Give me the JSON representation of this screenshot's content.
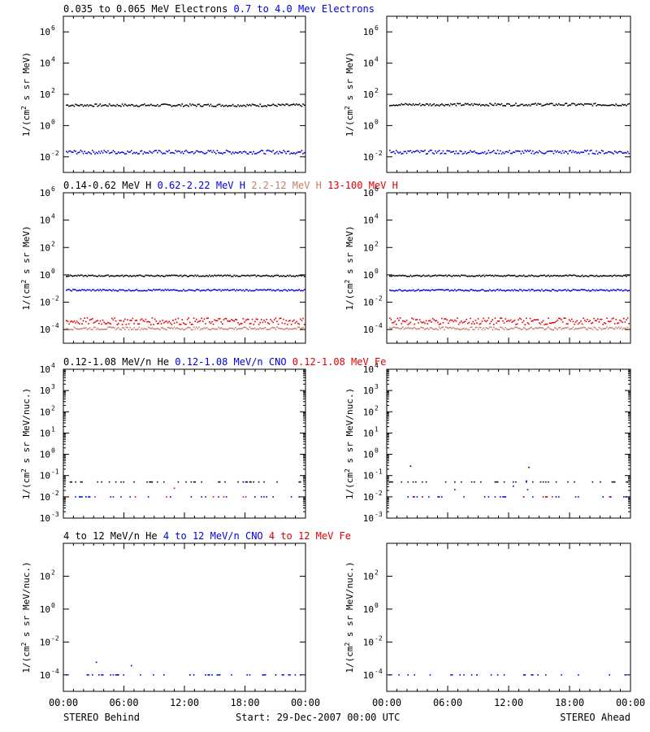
{
  "colors": {
    "black": "#000000",
    "blue": "#0000dd",
    "tan": "#c87f64",
    "red": "#e10000"
  },
  "chart_data": [
    {
      "type": "scatter",
      "panel": "row1-behind",
      "legend": [
        {
          "text": "0.035 to 0.065 MeV Electrons",
          "color": "black"
        },
        {
          "text": "0.7 to 4.0 Mev Electrons",
          "color": "blue"
        }
      ],
      "ylabel": "1/(cm2 s sr MeV)",
      "yscale": "log",
      "ylim": [
        0.001,
        10000000
      ],
      "yticks": [
        {
          "base": "10",
          "exp": "6"
        },
        {
          "base": "10",
          "exp": "4"
        },
        {
          "base": "10",
          "exp": "2"
        },
        {
          "base": "10",
          "exp": "0"
        },
        {
          "base": "10",
          "exp": "-2"
        }
      ],
      "series": [
        {
          "color": "black",
          "level": 20,
          "spread": 0.08
        },
        {
          "color": "blue",
          "level": 0.02,
          "spread": 0.12
        }
      ]
    },
    {
      "type": "scatter",
      "panel": "row1-ahead",
      "legend": [],
      "ylabel": "1/(cm2 s sr MeV)",
      "yscale": "log",
      "ylim": [
        0.001,
        10000000
      ],
      "yticks": [
        {
          "base": "10",
          "exp": "6"
        },
        {
          "base": "10",
          "exp": "4"
        },
        {
          "base": "10",
          "exp": "2"
        },
        {
          "base": "10",
          "exp": "0"
        },
        {
          "base": "10",
          "exp": "-2"
        }
      ],
      "series": [
        {
          "color": "black",
          "level": 22,
          "spread": 0.08
        },
        {
          "color": "blue",
          "level": 0.02,
          "spread": 0.12
        }
      ]
    },
    {
      "type": "scatter",
      "panel": "row2-behind",
      "legend": [
        {
          "text": "0.14-0.62 MeV H",
          "color": "black"
        },
        {
          "text": "0.62-2.22 MeV H",
          "color": "blue"
        },
        {
          "text": "2.2-12 MeV H",
          "color": "tan"
        },
        {
          "text": "13-100 MeV H",
          "color": "red"
        }
      ],
      "ylabel": "1/(cm2 s sr MeV)",
      "yscale": "log",
      "ylim": [
        1e-05,
        1000000
      ],
      "yticks": [
        {
          "base": "10",
          "exp": "6"
        },
        {
          "base": "10",
          "exp": "4"
        },
        {
          "base": "10",
          "exp": "2"
        },
        {
          "base": "10",
          "exp": "0"
        },
        {
          "base": "10",
          "exp": "-2"
        },
        {
          "base": "10",
          "exp": "-4"
        }
      ],
      "series": [
        {
          "color": "black",
          "level": 0.85,
          "spread": 0.05
        },
        {
          "color": "blue",
          "level": 0.075,
          "spread": 0.06
        },
        {
          "color": "tan",
          "level": 0.00012,
          "spread": 0.1
        },
        {
          "color": "red",
          "level": 0.0004,
          "spread": 0.25
        }
      ]
    },
    {
      "type": "scatter",
      "panel": "row2-ahead",
      "legend": [],
      "ylabel": "1/(cm2 s sr MeV)",
      "yscale": "log",
      "ylim": [
        1e-05,
        1000000
      ],
      "yticks": [
        {
          "base": "10",
          "exp": "6"
        },
        {
          "base": "10",
          "exp": "4"
        },
        {
          "base": "10",
          "exp": "2"
        },
        {
          "base": "10",
          "exp": "0"
        },
        {
          "base": "10",
          "exp": "-2"
        },
        {
          "base": "10",
          "exp": "-4"
        }
      ],
      "series": [
        {
          "color": "black",
          "level": 0.85,
          "spread": 0.05
        },
        {
          "color": "blue",
          "level": 0.075,
          "spread": 0.06
        },
        {
          "color": "tan",
          "level": 0.00012,
          "spread": 0.1
        },
        {
          "color": "red",
          "level": 0.0004,
          "spread": 0.25
        }
      ]
    },
    {
      "type": "scatter",
      "panel": "row3-behind",
      "legend": [
        {
          "text": "0.12-1.08 MeV/n He",
          "color": "black"
        },
        {
          "text": "0.12-1.08 MeV/n CNO",
          "color": "blue"
        },
        {
          "text": "0.12-1.08 MeV Fe",
          "color": "red"
        }
      ],
      "ylabel": "1/(cm2 s sr MeV/nuc.)",
      "yscale": "log",
      "ylim": [
        0.001,
        10000
      ],
      "yticks": [
        {
          "base": "10",
          "exp": "4"
        },
        {
          "base": "10",
          "exp": "3"
        },
        {
          "base": "10",
          "exp": "2"
        },
        {
          "base": "10",
          "exp": "1"
        },
        {
          "base": "10",
          "exp": "0"
        },
        {
          "base": "10",
          "exp": "-1"
        },
        {
          "base": "10",
          "exp": "-2"
        },
        {
          "base": "10",
          "exp": "-3"
        }
      ],
      "series": [
        {
          "color": "black",
          "level": 0.05,
          "spread": 0,
          "sparse": 0.55
        },
        {
          "color": "blue",
          "level": 0.01,
          "spread": 0,
          "sparse": 0.5
        },
        {
          "color": "red",
          "level": 0.01,
          "spread": 0,
          "sparse": 0.15
        }
      ]
    },
    {
      "type": "scatter",
      "panel": "row3-ahead",
      "legend": [],
      "ylabel": "1/(cm2 s sr MeV/nuc.)",
      "yscale": "log",
      "ylim": [
        0.001,
        10000
      ],
      "yticks": [
        {
          "base": "10",
          "exp": "4"
        },
        {
          "base": "10",
          "exp": "3"
        },
        {
          "base": "10",
          "exp": "2"
        },
        {
          "base": "10",
          "exp": "1"
        },
        {
          "base": "10",
          "exp": "0"
        },
        {
          "base": "10",
          "exp": "-1"
        },
        {
          "base": "10",
          "exp": "-2"
        },
        {
          "base": "10",
          "exp": "-3"
        }
      ],
      "series": [
        {
          "color": "black",
          "level": 0.05,
          "spread": 0,
          "sparse": 0.55
        },
        {
          "color": "blue",
          "level": 0.01,
          "spread": 0,
          "sparse": 0.5
        },
        {
          "color": "red",
          "level": 0.01,
          "spread": 0,
          "sparse": 0.1
        }
      ]
    },
    {
      "type": "scatter",
      "panel": "row4-behind",
      "legend": [
        {
          "text": "4 to 12 MeV/n He",
          "color": "black"
        },
        {
          "text": "4 to 12 MeV/n CNO",
          "color": "blue"
        },
        {
          "text": "4 to 12 MeV Fe",
          "color": "red"
        }
      ],
      "ylabel": "1/(cm2 s sr MeV/nuc.)",
      "yscale": "log",
      "ylim": [
        1e-05,
        10000
      ],
      "yticks": [
        {
          "base": "10",
          "exp": "2"
        },
        {
          "base": "10",
          "exp": "0"
        },
        {
          "base": "10",
          "exp": "-2"
        },
        {
          "base": "10",
          "exp": "-4"
        }
      ],
      "series": [
        {
          "color": "blue",
          "level": 0.0001,
          "spread": 0,
          "sparse": 0.35
        },
        {
          "color": "black",
          "level": 0.0001,
          "spread": 0,
          "sparse": 0.04
        }
      ]
    },
    {
      "type": "scatter",
      "panel": "row4-ahead",
      "legend": [],
      "ylabel": "1/(cm2 s sr MeV/nuc.)",
      "yscale": "log",
      "ylim": [
        1e-05,
        10000
      ],
      "yticks": [
        {
          "base": "10",
          "exp": "2"
        },
        {
          "base": "10",
          "exp": "0"
        },
        {
          "base": "10",
          "exp": "-2"
        },
        {
          "base": "10",
          "exp": "-4"
        }
      ],
      "series": [
        {
          "color": "blue",
          "level": 0.0001,
          "spread": 0,
          "sparse": 0.35
        },
        {
          "color": "black",
          "level": 0.0001,
          "spread": 0,
          "sparse": 0.04
        }
      ]
    }
  ],
  "xaxis": {
    "ticks": [
      "00:00",
      "06:00",
      "12:00",
      "18:00",
      "00:00"
    ]
  },
  "footer": {
    "left": "STEREO Behind",
    "center": "Start: 29-Dec-2007 00:00 UTC",
    "right": "STEREO Ahead"
  }
}
